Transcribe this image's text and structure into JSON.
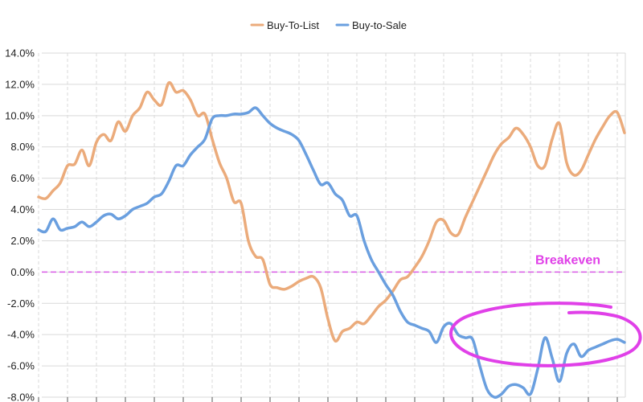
{
  "colors": {
    "background": "#ffffff",
    "gridline": "#d9d9d9",
    "breakeven": "#d95be6",
    "annotation": "#e040e8"
  },
  "legend": {
    "placement": "top-center",
    "items": [
      {
        "label": "Buy-To-List",
        "color": "#ebab7b"
      },
      {
        "label": "Buy-to-Sale",
        "color": "#6a9fdf"
      }
    ]
  },
  "chart_data": {
    "type": "line",
    "title": "",
    "xlabel": "",
    "ylabel": "",
    "ylim": [
      -8,
      14
    ],
    "y_ticks": [
      14,
      12,
      10,
      8,
      6,
      4,
      2,
      0,
      -2,
      -4,
      -6,
      -8
    ],
    "y_tick_labels": [
      "14.0%",
      "12.0%",
      "10.0%",
      "8.0%",
      "6.0%",
      "4.0%",
      "2.0%",
      "0.0%",
      "-2.0%",
      "-4.0%",
      "-6.0%",
      "-8.0%"
    ],
    "x_count": 82,
    "x_grid_every": 4,
    "grid": {
      "horizontal": true,
      "vertical": "dashed"
    },
    "series": [
      {
        "name": "Buy-To-List",
        "color": "#ebab7b",
        "values": [
          4.8,
          4.7,
          5.2,
          5.7,
          6.8,
          6.9,
          7.8,
          6.8,
          8.3,
          8.8,
          8.4,
          9.6,
          9.0,
          10.0,
          10.5,
          11.5,
          11.0,
          10.7,
          12.1,
          11.5,
          11.6,
          11.0,
          10.0,
          10.1,
          8.5,
          7.0,
          6.0,
          4.5,
          4.4,
          2.0,
          1.0,
          0.8,
          -0.8,
          -1.0,
          -1.1,
          -0.9,
          -0.6,
          -0.4,
          -0.3,
          -1.0,
          -3.0,
          -4.4,
          -3.8,
          -3.6,
          -3.2,
          -3.3,
          -2.8,
          -2.2,
          -1.8,
          -1.2,
          -0.5,
          -0.3,
          0.3,
          1.0,
          2.0,
          3.2,
          3.3,
          2.5,
          2.4,
          3.5,
          4.5,
          5.5,
          6.5,
          7.5,
          8.2,
          8.6,
          9.2,
          8.8,
          8.0,
          6.8,
          6.8,
          8.5,
          9.5,
          7.0,
          6.2,
          6.5,
          7.5,
          8.5,
          9.3,
          10.0,
          10.2,
          8.9
        ]
      },
      {
        "name": "Buy-to-Sale",
        "color": "#6a9fdf",
        "values": [
          2.7,
          2.6,
          3.4,
          2.7,
          2.8,
          2.9,
          3.2,
          2.9,
          3.2,
          3.6,
          3.7,
          3.4,
          3.6,
          4.0,
          4.2,
          4.4,
          4.8,
          5.0,
          5.8,
          6.8,
          6.8,
          7.5,
          8.0,
          8.5,
          9.8,
          10.0,
          10.0,
          10.1,
          10.1,
          10.2,
          10.5,
          10.0,
          9.5,
          9.2,
          9.0,
          8.8,
          8.4,
          7.5,
          6.5,
          5.6,
          5.7,
          5.0,
          4.6,
          3.6,
          3.6,
          2.0,
          0.8,
          0.0,
          -0.8,
          -1.5,
          -2.5,
          -3.2,
          -3.4,
          -3.6,
          -3.8,
          -4.5,
          -3.5,
          -3.3,
          -4.0,
          -4.2,
          -4.3,
          -6.0,
          -7.5,
          -8.0,
          -7.8,
          -7.3,
          -7.2,
          -7.4,
          -7.8,
          -6.2,
          -4.2,
          -5.5,
          -7.0,
          -5.2,
          -4.6,
          -5.4,
          -5.0,
          -4.8,
          -4.6,
          -4.4,
          -4.3,
          -4.5
        ]
      }
    ],
    "reference_lines": [
      {
        "label": "Breakeven",
        "y": 0,
        "style": "dashed",
        "color": "#d95be6"
      }
    ]
  }
}
